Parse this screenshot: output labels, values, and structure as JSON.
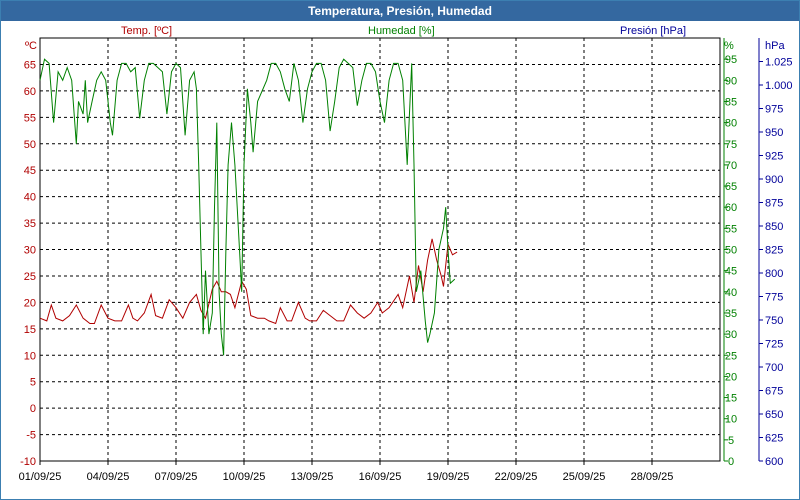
{
  "window": {
    "title": "Temperatura, Presión, Humedad"
  },
  "legend": {
    "temp": "Temp. [ºC]",
    "hum": "Humedad [%]",
    "pres": "Presión [hPa]"
  },
  "colors": {
    "temp": "#b00000",
    "hum": "#008000",
    "pres": "#000099",
    "grid": "#000000",
    "title_bg": "#3468a0"
  },
  "chart_data": {
    "type": "line",
    "title": "Temperatura, Presión, Humedad",
    "grid": true,
    "x_ticks": [
      "01/09/25",
      "04/09/25",
      "07/09/25",
      "10/09/25",
      "13/09/25",
      "16/09/25",
      "19/09/25",
      "22/09/25",
      "25/09/25",
      "28/09/25"
    ],
    "xlim_days": [
      0,
      30
    ],
    "x_tick_step_days": 3,
    "axes": {
      "temp": {
        "unit": "ºC",
        "ylim": [
          -10,
          70
        ],
        "ticks": [
          -10,
          -5,
          0,
          5,
          10,
          15,
          20,
          25,
          30,
          35,
          40,
          45,
          50,
          55,
          60,
          65
        ]
      },
      "hum": {
        "unit": "%",
        "ylim": [
          0,
          100
        ],
        "ticks": [
          0,
          5,
          10,
          15,
          20,
          25,
          30,
          35,
          40,
          45,
          50,
          55,
          60,
          65,
          70,
          75,
          80,
          85,
          90,
          95
        ]
      },
      "pres": {
        "unit": "hPa",
        "ylim": [
          600,
          1050
        ],
        "ticks": [
          "600",
          "625",
          "650",
          "675",
          "700",
          "725",
          "750",
          "775",
          "800",
          "825",
          "850",
          "875",
          "900",
          "925",
          "950",
          "975",
          "1.000",
          "1.025"
        ]
      }
    },
    "series": [
      {
        "name": "Temp. [ºC]",
        "axis": "temp",
        "points": [
          [
            0.0,
            17
          ],
          [
            0.3,
            16.5
          ],
          [
            0.5,
            19.5
          ],
          [
            0.7,
            17
          ],
          [
            1.0,
            16.5
          ],
          [
            1.3,
            17.5
          ],
          [
            1.6,
            19.5
          ],
          [
            1.9,
            17
          ],
          [
            2.2,
            16
          ],
          [
            2.4,
            16
          ],
          [
            2.7,
            19.5
          ],
          [
            3.0,
            17
          ],
          [
            3.3,
            16.5
          ],
          [
            3.6,
            16.5
          ],
          [
            3.9,
            19.5
          ],
          [
            4.1,
            17
          ],
          [
            4.3,
            16.5
          ],
          [
            4.6,
            18
          ],
          [
            4.9,
            21.5
          ],
          [
            5.1,
            17.5
          ],
          [
            5.4,
            17
          ],
          [
            5.7,
            20.5
          ],
          [
            6.0,
            19
          ],
          [
            6.3,
            17
          ],
          [
            6.6,
            20
          ],
          [
            6.9,
            21.5
          ],
          [
            7.1,
            18.5
          ],
          [
            7.3,
            17
          ],
          [
            7.6,
            22.5
          ],
          [
            7.8,
            24
          ],
          [
            8.0,
            22
          ],
          [
            8.2,
            22
          ],
          [
            8.4,
            21.5
          ],
          [
            8.6,
            19
          ],
          [
            8.9,
            24
          ],
          [
            9.1,
            22.5
          ],
          [
            9.3,
            17.5
          ],
          [
            9.6,
            17
          ],
          [
            9.9,
            17
          ],
          [
            10.1,
            16.5
          ],
          [
            10.4,
            16
          ],
          [
            10.6,
            19
          ],
          [
            10.9,
            16.5
          ],
          [
            11.1,
            16.5
          ],
          [
            11.4,
            20
          ],
          [
            11.7,
            17
          ],
          [
            11.9,
            16.5
          ],
          [
            12.2,
            16.5
          ],
          [
            12.5,
            18.5
          ],
          [
            12.8,
            17.5
          ],
          [
            13.1,
            16.5
          ],
          [
            13.4,
            16.5
          ],
          [
            13.7,
            19.5
          ],
          [
            14.0,
            18
          ],
          [
            14.3,
            17
          ],
          [
            14.6,
            18
          ],
          [
            14.9,
            20
          ],
          [
            15.1,
            18
          ],
          [
            15.4,
            19
          ],
          [
            15.8,
            21.5
          ],
          [
            16.0,
            19
          ],
          [
            16.3,
            25
          ],
          [
            16.5,
            20
          ],
          [
            16.7,
            27
          ],
          [
            16.9,
            22
          ],
          [
            17.1,
            28
          ],
          [
            17.3,
            32
          ],
          [
            17.5,
            28
          ],
          [
            17.7,
            25
          ],
          [
            17.8,
            23
          ],
          [
            17.9,
            27
          ],
          [
            18.0,
            31
          ],
          [
            18.2,
            29
          ],
          [
            18.4,
            29.5
          ]
        ]
      },
      {
        "name": "Humedad [%]",
        "axis": "hum",
        "points": [
          [
            0.0,
            90
          ],
          [
            0.2,
            95
          ],
          [
            0.4,
            94
          ],
          [
            0.6,
            80
          ],
          [
            0.8,
            92
          ],
          [
            1.0,
            90
          ],
          [
            1.2,
            93
          ],
          [
            1.4,
            90
          ],
          [
            1.6,
            75
          ],
          [
            1.7,
            85
          ],
          [
            1.9,
            82
          ],
          [
            2.0,
            90
          ],
          [
            2.1,
            80
          ],
          [
            2.3,
            85
          ],
          [
            2.5,
            90
          ],
          [
            2.7,
            92
          ],
          [
            2.9,
            90
          ],
          [
            3.1,
            80
          ],
          [
            3.2,
            77
          ],
          [
            3.4,
            90
          ],
          [
            3.6,
            94
          ],
          [
            3.8,
            94
          ],
          [
            4.0,
            92
          ],
          [
            4.2,
            93
          ],
          [
            4.4,
            81
          ],
          [
            4.6,
            90
          ],
          [
            4.8,
            94
          ],
          [
            5.0,
            94
          ],
          [
            5.2,
            93
          ],
          [
            5.4,
            92
          ],
          [
            5.6,
            82
          ],
          [
            5.8,
            92
          ],
          [
            6.0,
            94
          ],
          [
            6.2,
            93
          ],
          [
            6.4,
            77
          ],
          [
            6.6,
            90
          ],
          [
            6.8,
            92
          ],
          [
            6.9,
            88
          ],
          [
            7.0,
            70
          ],
          [
            7.1,
            50
          ],
          [
            7.2,
            30
          ],
          [
            7.3,
            45
          ],
          [
            7.45,
            30
          ],
          [
            7.6,
            35
          ],
          [
            7.7,
            60
          ],
          [
            7.8,
            80
          ],
          [
            7.9,
            40
          ],
          [
            8.0,
            30
          ],
          [
            8.1,
            25
          ],
          [
            8.2,
            50
          ],
          [
            8.3,
            70
          ],
          [
            8.45,
            80
          ],
          [
            8.6,
            70
          ],
          [
            8.8,
            50
          ],
          [
            8.9,
            40
          ],
          [
            9.0,
            70
          ],
          [
            9.15,
            88
          ],
          [
            9.3,
            80
          ],
          [
            9.4,
            73
          ],
          [
            9.6,
            85
          ],
          [
            10.0,
            90
          ],
          [
            10.2,
            94
          ],
          [
            10.4,
            94
          ],
          [
            10.6,
            92
          ],
          [
            10.8,
            88
          ],
          [
            11.0,
            85
          ],
          [
            11.2,
            94
          ],
          [
            11.4,
            90
          ],
          [
            11.6,
            80
          ],
          [
            11.8,
            88
          ],
          [
            12.0,
            92
          ],
          [
            12.2,
            94
          ],
          [
            12.4,
            94
          ],
          [
            12.6,
            90
          ],
          [
            12.8,
            78
          ],
          [
            13.0,
            85
          ],
          [
            13.2,
            93
          ],
          [
            13.4,
            95
          ],
          [
            13.6,
            94
          ],
          [
            13.8,
            93
          ],
          [
            14.0,
            84
          ],
          [
            14.2,
            90
          ],
          [
            14.4,
            94
          ],
          [
            14.6,
            94
          ],
          [
            14.8,
            92
          ],
          [
            15.0,
            85
          ],
          [
            15.2,
            80
          ],
          [
            15.4,
            90
          ],
          [
            15.6,
            94
          ],
          [
            15.8,
            94
          ],
          [
            16.0,
            90
          ],
          [
            16.2,
            70
          ],
          [
            16.4,
            94
          ],
          [
            16.5,
            70
          ],
          [
            16.6,
            40
          ],
          [
            16.8,
            45
          ],
          [
            17.0,
            33
          ],
          [
            17.1,
            28
          ],
          [
            17.2,
            30
          ],
          [
            17.4,
            35
          ],
          [
            17.6,
            50
          ],
          [
            17.8,
            55
          ],
          [
            17.9,
            60
          ],
          [
            18.0,
            50
          ],
          [
            18.1,
            42
          ],
          [
            18.3,
            43
          ]
        ]
      }
    ]
  }
}
